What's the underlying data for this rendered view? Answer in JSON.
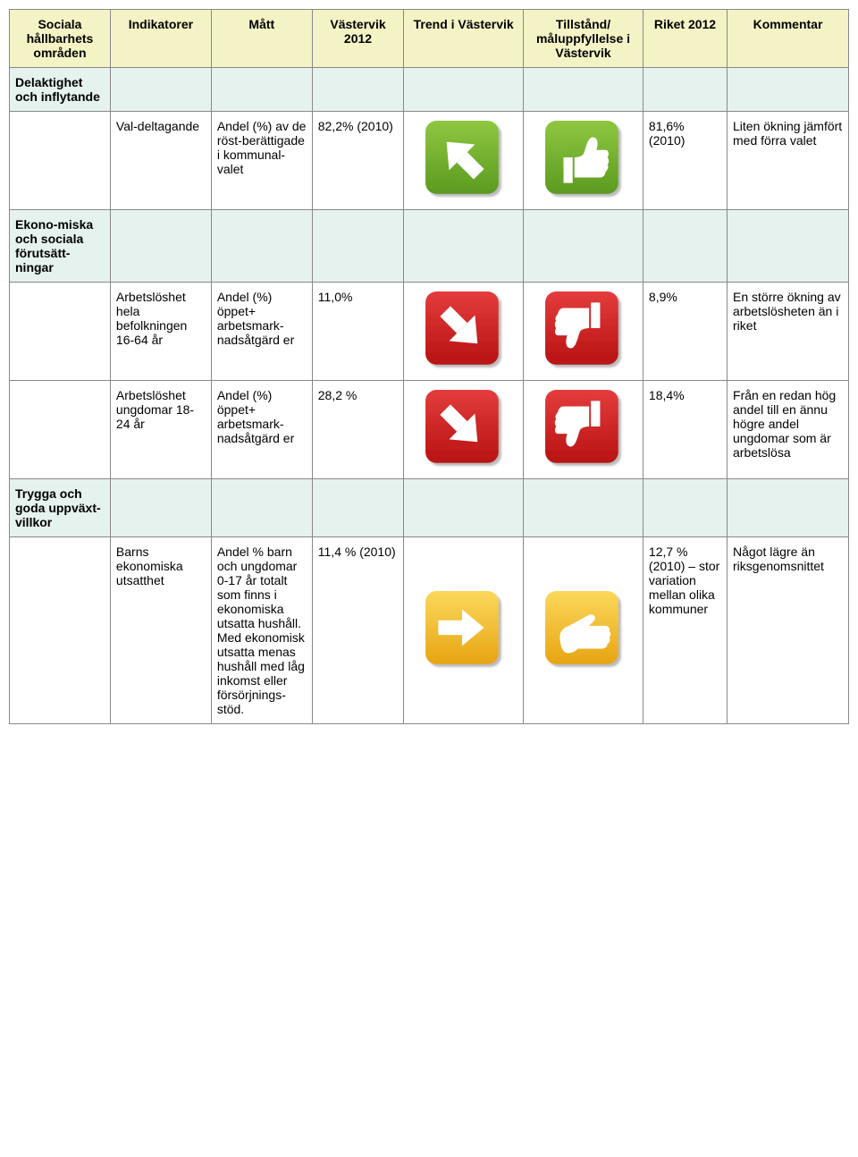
{
  "headers": [
    "Sociala hållbarhets områden",
    "Indikatorer",
    "Mått",
    "Västervik 2012",
    "Trend i Västervik",
    "Tillstånd/ måluppfyllelse i Västervik",
    "Riket 2012",
    "Kommentar"
  ],
  "rows": [
    {
      "type": "category",
      "label": "Delaktighet och inflytande"
    },
    {
      "type": "data",
      "indicator": "Val-deltagande",
      "measure": "Andel (%) av de röst-berättigade i kommunal-valet",
      "vastervik": "82,2% (2010)",
      "trend_icon": "arrow-up-green",
      "status_icon": "thumb-up-green",
      "riket": "81,6% (2010)",
      "comment": "Liten ökning jämfört med förra valet"
    },
    {
      "type": "category",
      "label": "Ekono-miska och sociala förutsätt-ningar"
    },
    {
      "type": "data",
      "indicator": "Arbetslöshet hela befolkningen 16-64 år",
      "measure": "Andel (%) öppet+ arbetsmark-nadsåtgärd er",
      "vastervik": "11,0%",
      "trend_icon": "arrow-down-red",
      "status_icon": "thumb-down-red",
      "riket": "8,9%",
      "comment": "En större ökning av arbetslösheten än i riket"
    },
    {
      "type": "data",
      "indicator": "Arbetslöshet ungdomar 18-24 år",
      "measure": "Andel (%) öppet+ arbetsmark-nadsåtgärd er",
      "vastervik": "28,2 %",
      "trend_icon": "arrow-down-red",
      "status_icon": "thumb-down-red",
      "riket": "18,4%",
      "comment": "Från en redan hög andel till en ännu högre andel ungdomar som är arbetslösa"
    },
    {
      "type": "category",
      "label": "Trygga och goda uppväxt-villkor"
    },
    {
      "type": "data",
      "indicator": "Barns ekonomiska utsatthet",
      "measure": "Andel % barn och ungdomar 0-17 år totalt som finns i ekonomiska utsatta hushåll. Med ekonomisk utsatta menas hushåll med låg inkomst eller försörjnings-stöd.",
      "vastervik": "11,4 % (2010)",
      "trend_icon": "arrow-right-yellow",
      "status_icon": "hand-yellow",
      "riket": "12,7 % (2010) – stor variation mellan olika kommuner",
      "comment": "Något lägre än riksgenomsnittet"
    }
  ],
  "icons": {
    "colors": {
      "green_top": "#8fc740",
      "green_bottom": "#5a9a1f",
      "red_top": "#e43c3c",
      "red_bottom": "#b81212",
      "yellow_top": "#fbd85b",
      "yellow_bottom": "#e7a412",
      "shadow": "#cccccc",
      "white": "#ffffff"
    }
  }
}
